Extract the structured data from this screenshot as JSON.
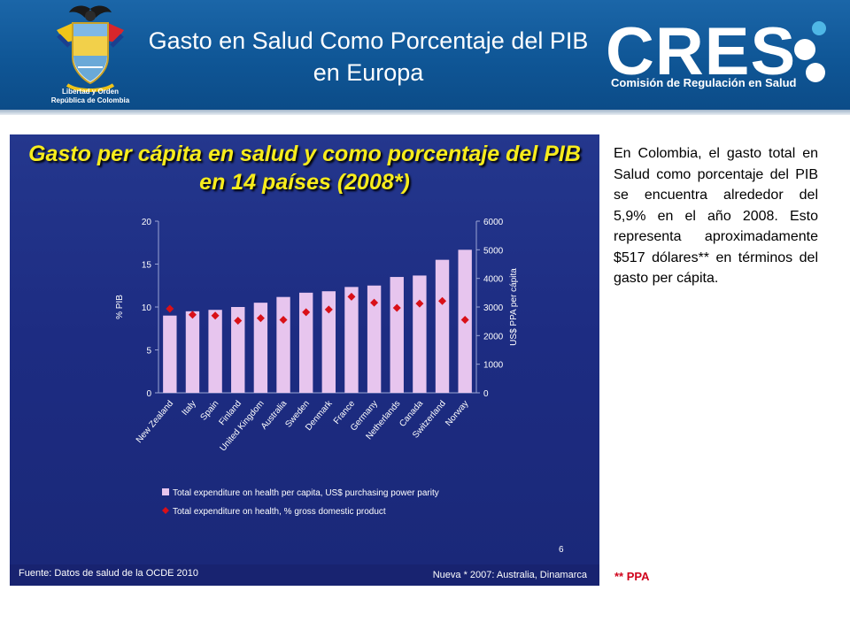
{
  "header": {
    "title": "Gasto en Salud Como Porcentaje del PIB en Europa",
    "seal_caption_line1": "Libertad y Orden",
    "seal_caption_line2": "República de Colombia",
    "logo_word": "CRES",
    "logo_subtitle": "Comisión de Regulación en Salud"
  },
  "chart_title": "Gasto per cápita en salud y como porcentaje del PIB en 14 países (2008*)",
  "source": "Fuente: Datos de salud de la OCDE 2010",
  "note": "Nueva * 2007: Australia, Dinamarca",
  "slide_number": "6",
  "side_text": "En Colombia, el gasto total en Salud como porcentaje del PIB se encuentra alrededor del 5,9% en el año 2008. Esto representa aproximadamente $517 dólares** en términos del gasto per cápita.",
  "footnote": "** PPA",
  "colors": {
    "header_blue": "#0f5696",
    "chart_bg": "#1d2c82",
    "bar_fill": "#e7c5ee",
    "marker_fill": "#d91018",
    "title_yellow": "#f7ec1c",
    "footnote_red": "#d0021b"
  },
  "chart_data": {
    "type": "bar",
    "categories": [
      "New Zealand",
      "Italy",
      "Spain",
      "Finland",
      "United Kingdom",
      "Australia",
      "Sweden",
      "Denmark",
      "France",
      "Germany",
      "Netherlands",
      "Canada",
      "Switzerland",
      "Norway"
    ],
    "series": [
      {
        "name": "Total expenditure on health per capita, US$ purchasing power parity",
        "type": "bar",
        "axis": "right",
        "values": [
          2700,
          2850,
          2900,
          3000,
          3150,
          3350,
          3500,
          3550,
          3700,
          3750,
          4050,
          4100,
          4650,
          5000
        ]
      },
      {
        "name": "Total expenditure on health, % gross domestic product",
        "type": "scatter",
        "axis": "left",
        "values": [
          9.8,
          9.1,
          9.0,
          8.4,
          8.7,
          8.5,
          9.4,
          9.7,
          11.2,
          10.5,
          9.9,
          10.4,
          10.7,
          8.5
        ]
      }
    ],
    "y_left": {
      "label": "% PIB",
      "min": 0,
      "max": 20,
      "ticks": [
        0,
        5,
        10,
        15,
        20
      ]
    },
    "y_right": {
      "label": "US$ PPA per cápita",
      "min": 0,
      "max": 6000,
      "ticks": [
        0,
        1000,
        2000,
        3000,
        4000,
        5000,
        6000
      ]
    },
    "grid": false,
    "legend_position": "bottom"
  }
}
